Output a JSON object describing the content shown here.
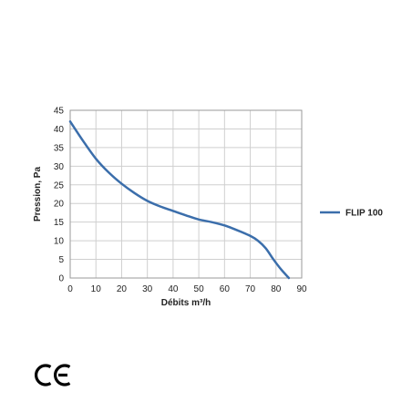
{
  "chart_data": {
    "type": "line",
    "title": "",
    "xlabel": "Débits m³/h",
    "ylabel": "Pression, Pa",
    "xlim": [
      0,
      90
    ],
    "ylim": [
      0,
      45
    ],
    "x_ticks": [
      "0",
      "10",
      "20",
      "30",
      "40",
      "50",
      "60",
      "70",
      "80",
      "90"
    ],
    "y_ticks": [
      "0",
      "5",
      "10",
      "15",
      "20",
      "25",
      "30",
      "35",
      "40",
      "45"
    ],
    "grid": true,
    "legend_position": "right",
    "series": [
      {
        "name": "FLIP 100",
        "color": "#3b6eab",
        "x": [
          0,
          5,
          10,
          15,
          20,
          25,
          30,
          35,
          40,
          45,
          50,
          55,
          60,
          65,
          70,
          73,
          76,
          79,
          82,
          85
        ],
        "y": [
          42,
          36.8,
          32,
          28.3,
          25.3,
          22.8,
          20.7,
          19.2,
          18,
          16.8,
          15.7,
          15,
          14.1,
          12.8,
          11.3,
          10,
          8,
          5,
          2.3,
          0
        ]
      }
    ]
  },
  "marks": {
    "ce_mark": "CE",
    "ce_icon": "ce-mark-icon"
  }
}
